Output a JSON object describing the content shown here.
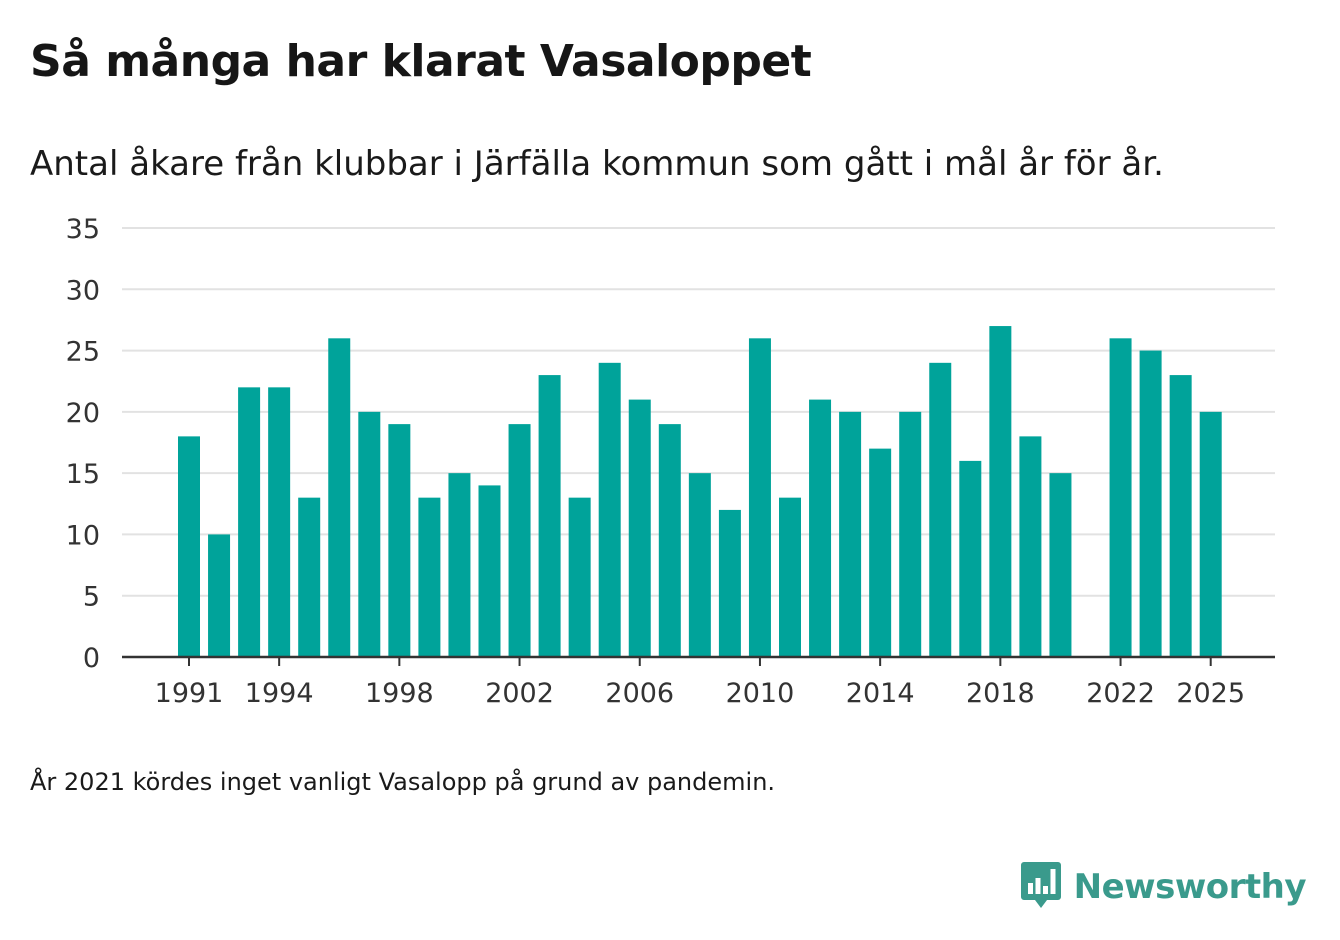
{
  "title": "Så många har klarat Vasaloppet",
  "subtitle": "Antal åkare från klubbar i Järfälla kommun som gått i mål år för år.",
  "note": "År 2021 kördes inget vanligt Vasalopp på grund av pandemin.",
  "brand": {
    "name": "Newsworthy",
    "icon": "newsworthy-logo-icon",
    "color": "#3a9a8c"
  },
  "colors": {
    "bar": "#00a39a",
    "grid": "#e2e2e2",
    "axis": "#333333"
  },
  "chart_data": {
    "type": "bar",
    "title": "Så många har klarat Vasaloppet",
    "xlabel": "",
    "ylabel": "",
    "ylim": [
      0,
      35
    ],
    "yticks": [
      0,
      5,
      10,
      15,
      20,
      25,
      30,
      35
    ],
    "x": [
      1991,
      1992,
      1993,
      1994,
      1995,
      1996,
      1997,
      1998,
      1999,
      2000,
      2001,
      2002,
      2003,
      2004,
      2005,
      2006,
      2007,
      2008,
      2009,
      2010,
      2011,
      2012,
      2013,
      2014,
      2015,
      2016,
      2017,
      2018,
      2019,
      2020,
      2021,
      2022,
      2023,
      2024,
      2025
    ],
    "values": [
      18,
      10,
      22,
      22,
      13,
      26,
      20,
      19,
      13,
      15,
      14,
      19,
      23,
      13,
      24,
      21,
      19,
      15,
      12,
      26,
      13,
      21,
      20,
      17,
      20,
      24,
      16,
      27,
      18,
      15,
      null,
      26,
      25,
      23,
      20
    ],
    "xticks": [
      "1991",
      "1994",
      "1998",
      "2002",
      "2006",
      "2010",
      "2014",
      "2018",
      "2022",
      "2025"
    ],
    "grid": true,
    "legend": "none"
  }
}
